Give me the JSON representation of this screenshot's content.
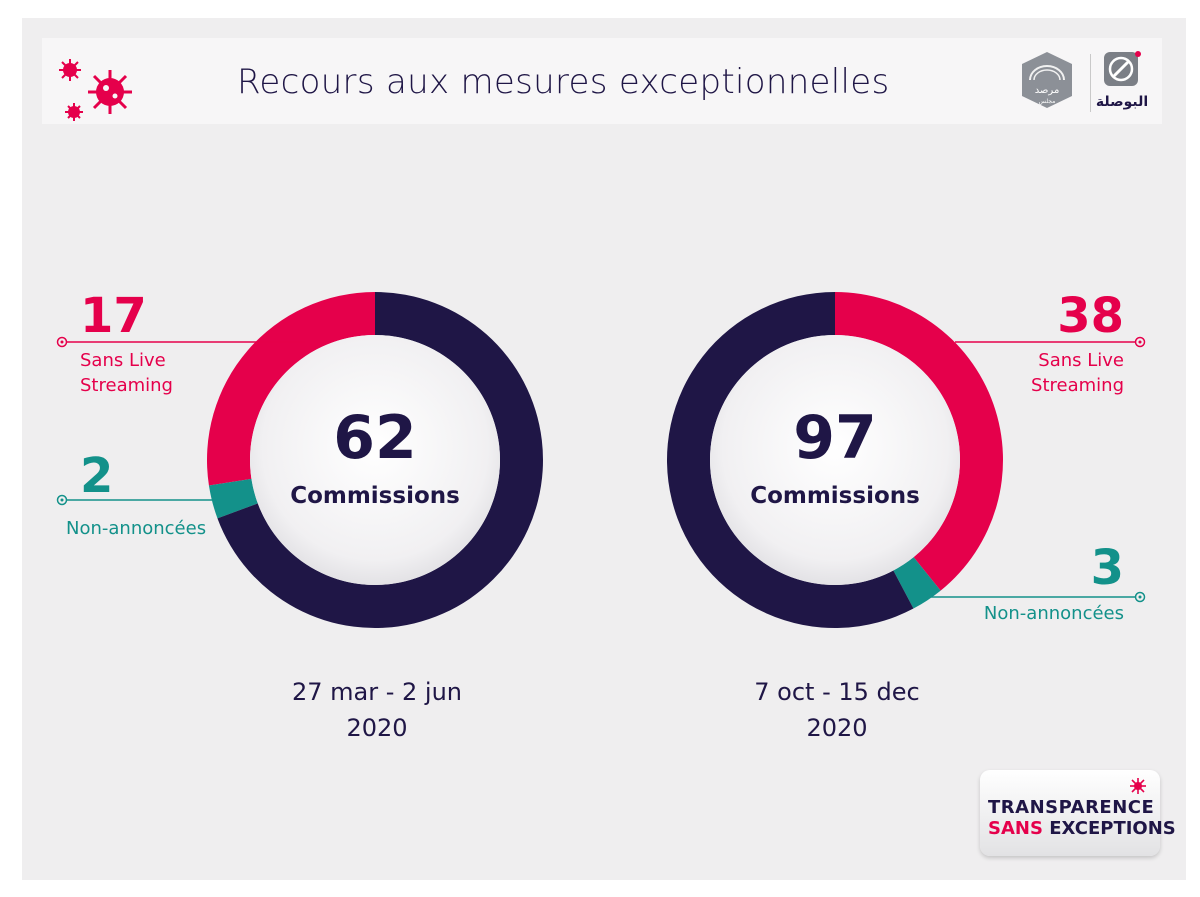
{
  "header": {
    "title": "Recours aux mesures exceptionnelles"
  },
  "logos": {
    "marsad_text": "مرصد",
    "marsad_sub": "مجلس",
    "albawsala_text": "البوصلة"
  },
  "badge": {
    "line1": "TRANSPARENCE",
    "line2_a": "SANS",
    "line2_b": "EXCEPTIONS"
  },
  "colors": {
    "navy": "#1f1646",
    "red": "#e5004b",
    "teal": "#13918a",
    "background": "#efeeef"
  },
  "chart_data": [
    {
      "type": "pie",
      "center_value": "62",
      "center_label": "Commissions",
      "total": 62,
      "slices": [
        {
          "label": "Sans Live Streaming",
          "value": 17,
          "color": "#e5004b"
        },
        {
          "label": "Non-annoncées",
          "value": 2,
          "color": "#13918a"
        },
        {
          "label": "",
          "value": 43,
          "color": "#1f1646"
        }
      ],
      "period_line1": "27 mar - 2 jun",
      "period_line2": "2020",
      "labels": {
        "red_value": "17",
        "red_line1": "Sans Live",
        "red_line2": "Streaming",
        "teal_value": "2",
        "teal_line1": "Non-annoncées"
      }
    },
    {
      "type": "pie",
      "center_value": "97",
      "center_label": "Commissions",
      "total": 97,
      "slices": [
        {
          "label": "Sans Live Streaming",
          "value": 38,
          "color": "#e5004b"
        },
        {
          "label": "Non-annoncées",
          "value": 3,
          "color": "#13918a"
        },
        {
          "label": "",
          "value": 56,
          "color": "#1f1646"
        }
      ],
      "period_line1": "7 oct - 15 dec",
      "period_line2": "2020",
      "labels": {
        "red_value": "38",
        "red_line1": "Sans Live",
        "red_line2": "Streaming",
        "teal_value": "3",
        "teal_line1": "Non-annoncées"
      }
    }
  ]
}
